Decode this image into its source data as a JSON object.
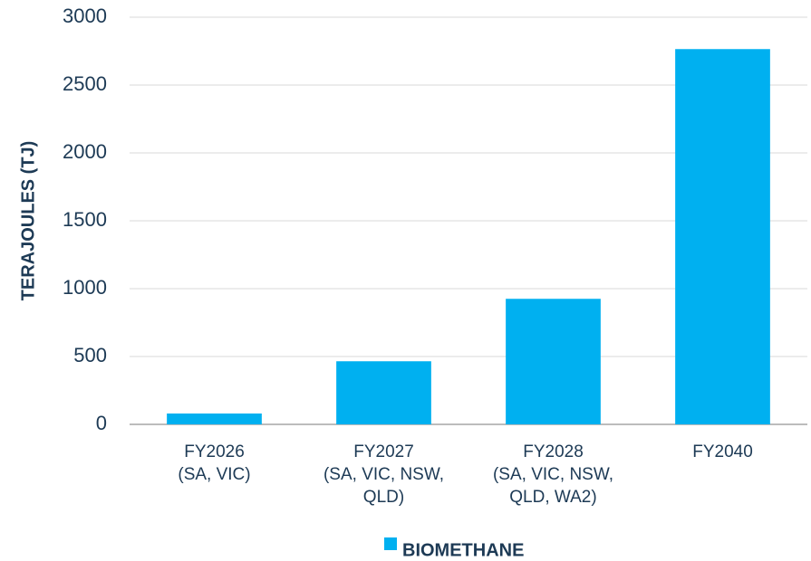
{
  "chart_data": {
    "type": "bar",
    "y_label": "TERAJOULES (TJ)",
    "categories": [
      [
        "FY2026",
        "(SA, VIC)"
      ],
      [
        "FY2027",
        "(SA, VIC, NSW,",
        "QLD)"
      ],
      [
        "FY2028",
        "(SA, VIC, NSW,",
        "QLD, WA2)"
      ],
      [
        "FY2040"
      ]
    ],
    "series": [
      {
        "name": "BIOMETHANE",
        "color": "#00b0f0",
        "values": [
          80,
          465,
          925,
          2765
        ]
      }
    ],
    "ylim": [
      0,
      3000
    ],
    "yticks": [
      0,
      500,
      1000,
      1500,
      2000,
      2500,
      3000
    ],
    "grid": true,
    "legend": "bottom"
  }
}
